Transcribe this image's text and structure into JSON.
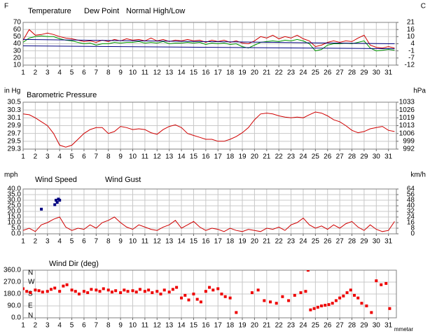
{
  "chart_data": [
    {
      "type": "line",
      "ylabel": "F",
      "y2label": "C",
      "xlim": [
        1,
        31.65
      ],
      "xticks": [
        1,
        2,
        3,
        4,
        5,
        6,
        7,
        8,
        9,
        10,
        11,
        12,
        13,
        14,
        15,
        16,
        17,
        18,
        19,
        20,
        21,
        22,
        23,
        24,
        25,
        26,
        27,
        28,
        29,
        30,
        31
      ],
      "ylim": [
        10,
        70
      ],
      "yticks": [
        70,
        60,
        50,
        40,
        30,
        20,
        10
      ],
      "y2lim": [
        -12.22,
        21.11
      ],
      "y2ticks": [
        {
          "value": 21.11,
          "label": "21"
        },
        {
          "value": 15.56,
          "label": "16"
        },
        {
          "value": 10,
          "label": "10"
        },
        {
          "value": 4.44,
          "label": "4"
        },
        {
          "value": -1.11,
          "label": "-1"
        },
        {
          "value": -6.67,
          "label": "-7"
        },
        {
          "value": -12.22,
          "label": "-12"
        }
      ],
      "grid": true,
      "x": [
        1,
        1.5,
        2,
        2.5,
        3,
        3.5,
        4,
        4.5,
        5,
        5.5,
        6,
        6.5,
        7,
        7.5,
        8,
        8.5,
        9,
        9.5,
        10,
        10.5,
        11,
        11.5,
        12,
        12.5,
        13,
        13.5,
        14,
        14.5,
        15,
        15.5,
        16,
        16.5,
        17,
        17.5,
        18,
        18.5,
        19,
        19.5,
        20,
        20.5,
        21,
        21.5,
        22,
        22.5,
        23,
        23.5,
        24,
        24.5,
        25,
        25.5,
        26,
        26.5,
        27,
        27.5,
        28,
        28.5,
        29,
        29.5,
        30,
        30.5,
        31,
        31.5
      ],
      "series": [
        {
          "name": "Temperature",
          "color": "#d00000",
          "values": [
            45,
            60,
            52,
            53,
            55,
            53,
            50,
            48,
            47,
            45,
            43,
            44,
            42,
            45,
            43,
            46,
            44,
            47,
            45,
            46,
            44,
            48,
            44,
            46,
            43,
            45,
            44,
            46,
            44,
            45,
            42,
            45,
            43,
            45,
            42,
            44,
            41,
            40,
            44,
            50,
            48,
            52,
            47,
            50,
            48,
            52,
            47,
            44,
            36,
            38,
            42,
            44,
            42,
            44,
            43,
            48,
            52,
            38,
            35,
            34,
            36,
            34
          ]
        },
        {
          "name": "Dew Point",
          "color": "#009900",
          "values": [
            42,
            48,
            50,
            51,
            50,
            50,
            47,
            45,
            44,
            42,
            40,
            41,
            38,
            40,
            40,
            42,
            41,
            42,
            42,
            43,
            41,
            42,
            41,
            43,
            40,
            41,
            41,
            42,
            41,
            42,
            39,
            41,
            40,
            41,
            39,
            40,
            36,
            34,
            38,
            42,
            43,
            44,
            43,
            45,
            44,
            46,
            44,
            40,
            30,
            32,
            38,
            40,
            40,
            41,
            40,
            42,
            44,
            34,
            30,
            31,
            32,
            31
          ]
        },
        {
          "name": "Normal High/Low",
          "color": "#000080",
          "x": [
            1,
            31.5
          ],
          "high": [
            46,
            40
          ],
          "low": [
            37,
            33
          ]
        }
      ]
    },
    {
      "type": "line",
      "ylabel": "in Hg",
      "y2label": "hPa",
      "xlim": [
        1,
        31.65
      ],
      "xticks": [
        1,
        2,
        3,
        4,
        5,
        6,
        7,
        8,
        9,
        10,
        11,
        12,
        13,
        14,
        15,
        16,
        17,
        18,
        19,
        20,
        21,
        22,
        23,
        24,
        25,
        26,
        27,
        28,
        29,
        30,
        31
      ],
      "ylim": [
        29.3,
        30.5
      ],
      "yticks": [
        30.5,
        30.3,
        30.1,
        29.9,
        29.7,
        29.5,
        29.3
      ],
      "y2lim": [
        992.21,
        1032.85
      ],
      "y2ticks": [
        {
          "value": 1032.85,
          "label": "1033"
        },
        {
          "value": 1026.08,
          "label": "1026"
        },
        {
          "value": 1019.3,
          "label": "1019"
        },
        {
          "value": 1012.53,
          "label": "1013"
        },
        {
          "value": 1005.76,
          "label": "1006"
        },
        {
          "value": 998.99,
          "label": "999"
        },
        {
          "value": 992.21,
          "label": "992"
        }
      ],
      "grid": true,
      "x": [
        1,
        1.5,
        2,
        2.5,
        3,
        3.5,
        4,
        4.5,
        5,
        5.5,
        6,
        6.5,
        7,
        7.5,
        8,
        8.5,
        9,
        9.5,
        10,
        10.5,
        11,
        11.5,
        12,
        12.5,
        13,
        13.5,
        14,
        14.5,
        15,
        15.5,
        16,
        16.5,
        17,
        17.5,
        18,
        18.5,
        19,
        19.5,
        20,
        20.5,
        21,
        21.5,
        22,
        22.5,
        23,
        23.5,
        24,
        24.5,
        25,
        25.5,
        26,
        26.5,
        27,
        27.5,
        28,
        28.5,
        29,
        29.5,
        30,
        30.5,
        31,
        31.5
      ],
      "series": [
        {
          "name": "Barometric Pressure",
          "color": "#d00000",
          "values": [
            30.2,
            30.18,
            30.1,
            30.0,
            29.9,
            29.7,
            29.4,
            29.35,
            29.4,
            29.55,
            29.7,
            29.8,
            29.85,
            29.85,
            29.7,
            29.75,
            29.88,
            29.85,
            29.8,
            29.82,
            29.8,
            29.72,
            29.68,
            29.8,
            29.88,
            29.92,
            29.85,
            29.7,
            29.65,
            29.6,
            29.55,
            29.55,
            29.5,
            29.5,
            29.55,
            29.62,
            29.72,
            29.85,
            30.05,
            30.2,
            30.22,
            30.2,
            30.15,
            30.12,
            30.1,
            30.12,
            30.1,
            30.18,
            30.25,
            30.22,
            30.15,
            30.05,
            30.0,
            29.9,
            29.78,
            29.72,
            29.75,
            29.82,
            29.85,
            29.88,
            29.78,
            29.75
          ]
        }
      ]
    },
    {
      "type": "line",
      "ylabel": "mph",
      "y2label": "km/h",
      "xlim": [
        1,
        31.65
      ],
      "xticks": [
        1,
        2,
        3,
        4,
        5,
        6,
        7,
        8,
        9,
        10,
        11,
        12,
        13,
        14,
        15,
        16,
        17,
        18,
        19,
        20,
        21,
        22,
        23,
        24,
        25,
        26,
        27,
        28,
        29,
        30,
        31
      ],
      "ylim": [
        0,
        40
      ],
      "yticks": [
        {
          "value": 40,
          "label": "40.0"
        },
        {
          "value": 35,
          "label": "35.0"
        },
        {
          "value": 30,
          "label": "30.0"
        },
        {
          "value": 25,
          "label": "25.0"
        },
        {
          "value": 20,
          "label": "20.0"
        },
        {
          "value": 15,
          "label": "15.0"
        },
        {
          "value": 10,
          "label": "10.0"
        },
        {
          "value": 5,
          "label": "5.0"
        },
        {
          "value": 0,
          "label": "0.0"
        }
      ],
      "y2lim": [
        0,
        64.37
      ],
      "y2ticks": [
        {
          "value": 64.37,
          "label": "64"
        },
        {
          "value": 56.33,
          "label": "56"
        },
        {
          "value": 48.28,
          "label": "48"
        },
        {
          "value": 40.23,
          "label": "40"
        },
        {
          "value": 32.19,
          "label": "32"
        },
        {
          "value": 24.14,
          "label": "24"
        },
        {
          "value": 16.09,
          "label": "16"
        },
        {
          "value": 8.05,
          "label": "8"
        },
        0
      ],
      "grid": true,
      "x": [
        1,
        1.5,
        2,
        2.5,
        3,
        3.5,
        4,
        4.5,
        5,
        5.5,
        6,
        6.5,
        7,
        7.5,
        8,
        8.5,
        9,
        9.5,
        10,
        10.5,
        11,
        11.5,
        12,
        12.5,
        13,
        13.5,
        14,
        14.5,
        15,
        15.5,
        16,
        16.5,
        17,
        17.5,
        18,
        18.5,
        19,
        19.5,
        20,
        20.5,
        21,
        21.5,
        22,
        22.5,
        23,
        23.5,
        24,
        24.5,
        25,
        25.5,
        26,
        26.5,
        27,
        27.5,
        28,
        28.5,
        29,
        29.5,
        30,
        30.5,
        31,
        31.5
      ],
      "series": [
        {
          "name": "Wind Speed",
          "color": "#d00000",
          "values": [
            3,
            5,
            2,
            8,
            10,
            13,
            15,
            6,
            3,
            5,
            4,
            8,
            5,
            10,
            12,
            15,
            10,
            6,
            4,
            8,
            6,
            4,
            3,
            6,
            8,
            12,
            5,
            8,
            11,
            6,
            3,
            5,
            4,
            2,
            5,
            3,
            2,
            4,
            3,
            2,
            5,
            4,
            6,
            3,
            8,
            10,
            14,
            8,
            5,
            7,
            4,
            8,
            5,
            9,
            11,
            6,
            3,
            8,
            4,
            2,
            3,
            11
          ]
        },
        {
          "name": "Wind Gust",
          "color": "#000080",
          "mode": "markers",
          "x": [
            2.5,
            3.6,
            3.7,
            3.8,
            3.9,
            4.0
          ],
          "values": [
            22,
            26,
            30,
            28,
            31,
            30
          ]
        }
      ]
    },
    {
      "type": "scatter",
      "xlim": [
        1,
        31.65
      ],
      "xticks": [
        1,
        2,
        3,
        4,
        5,
        6,
        7,
        8,
        9,
        10,
        11,
        12,
        13,
        14,
        15,
        16,
        17,
        18,
        19,
        20,
        21,
        22,
        23,
        24,
        25,
        26,
        27,
        28,
        29,
        30,
        31
      ],
      "ylim": [
        0,
        360
      ],
      "yticks": [
        {
          "value": 360,
          "label": "360.0"
        },
        {
          "value": 270,
          "label": "270.0"
        },
        {
          "value": 180,
          "label": "180.0"
        },
        {
          "value": 90,
          "label": "90.0"
        },
        {
          "value": 0,
          "label": "0.0"
        }
      ],
      "compass_labels": [
        "N",
        "W",
        "S",
        "E",
        "N"
      ],
      "grid": true,
      "annotation": "mmetar",
      "series": [
        {
          "name": "Wind Dir (deg)",
          "color": "#ee0000",
          "mode": "markers",
          "x": [
            1,
            1.3,
            1.6,
            2,
            2.3,
            2.6,
            3,
            3.3,
            3.6,
            4,
            4.3,
            4.6,
            5,
            5.3,
            5.6,
            6,
            6.3,
            6.6,
            7,
            7.3,
            7.6,
            8,
            8.3,
            8.6,
            9,
            9.3,
            9.6,
            10,
            10.3,
            10.6,
            11,
            11.3,
            11.6,
            12,
            12.3,
            12.6,
            13,
            13.3,
            13.6,
            14,
            14.3,
            14.6,
            15,
            15.3,
            15.6,
            16,
            16.3,
            16.6,
            17,
            17.3,
            17.6,
            18,
            18.5,
            19.8,
            20.3,
            20.8,
            21.3,
            21.8,
            22.3,
            22.8,
            23.3,
            23.8,
            24.2,
            24.4,
            24.6,
            24.9,
            25.2,
            25.5,
            25.8,
            26.1,
            26.4,
            26.7,
            27,
            27.3,
            27.6,
            27.9,
            28.2,
            28.5,
            28.8,
            29.2,
            29.6,
            30,
            30.4,
            30.8,
            31.1
          ],
          "values": [
            220,
            200,
            190,
            210,
            205,
            195,
            200,
            215,
            225,
            200,
            240,
            250,
            210,
            200,
            180,
            200,
            190,
            215,
            210,
            200,
            220,
            210,
            195,
            205,
            190,
            210,
            200,
            205,
            195,
            215,
            200,
            210,
            190,
            200,
            180,
            210,
            195,
            215,
            230,
            150,
            170,
            135,
            180,
            140,
            120,
            200,
            230,
            210,
            220,
            180,
            160,
            150,
            40,
            190,
            210,
            130,
            120,
            110,
            160,
            130,
            170,
            190,
            200,
            360,
            60,
            70,
            80,
            90,
            95,
            100,
            110,
            130,
            150,
            165,
            190,
            210,
            170,
            150,
            110,
            90,
            40,
            280,
            250,
            260,
            70
          ]
        }
      ]
    }
  ]
}
